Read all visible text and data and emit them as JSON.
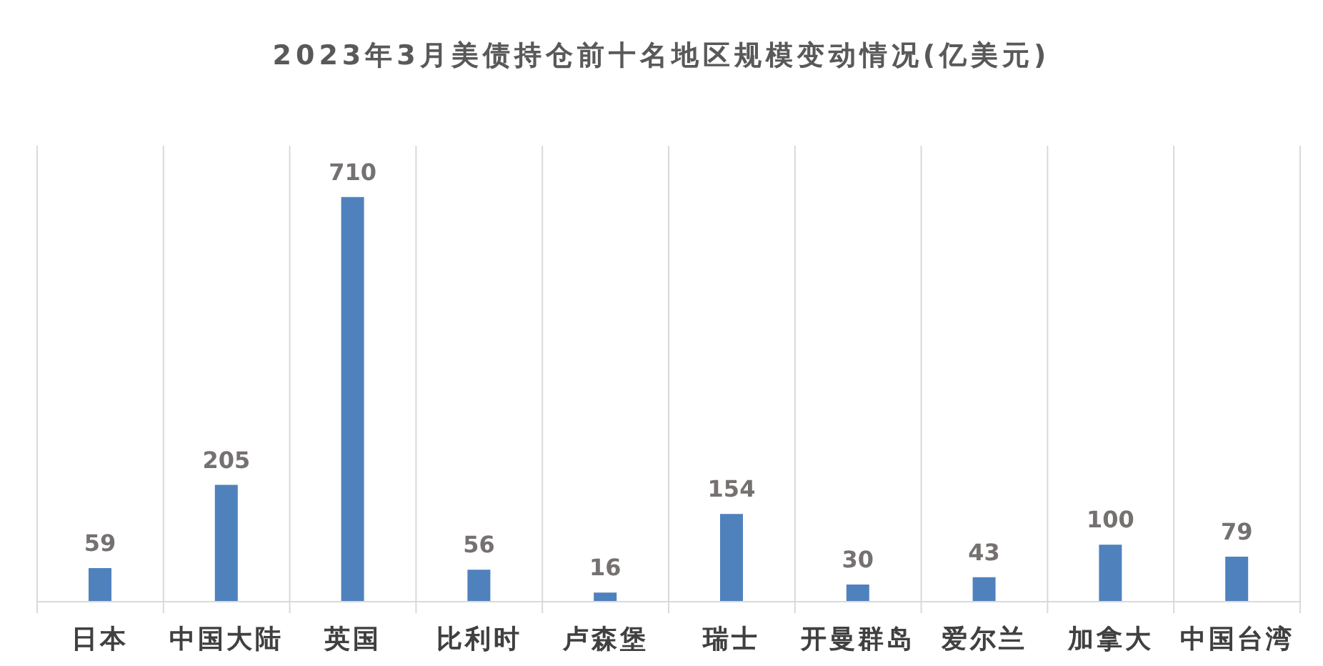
{
  "chart_data": {
    "type": "bar",
    "title": "2023年3月美债持仓前十名地区规模变动情况(亿美元)",
    "categories": [
      "日本",
      "中国大陆",
      "英国",
      "比利时",
      "卢森堡",
      "瑞士",
      "开曼群岛",
      "爱尔兰",
      "加拿大",
      "中国台湾"
    ],
    "values": [
      59,
      205,
      710,
      56,
      16,
      154,
      30,
      43,
      100,
      79
    ],
    "color": "#4f81bd",
    "data_labels": true,
    "grid": "x",
    "tick_labels": "x"
  }
}
